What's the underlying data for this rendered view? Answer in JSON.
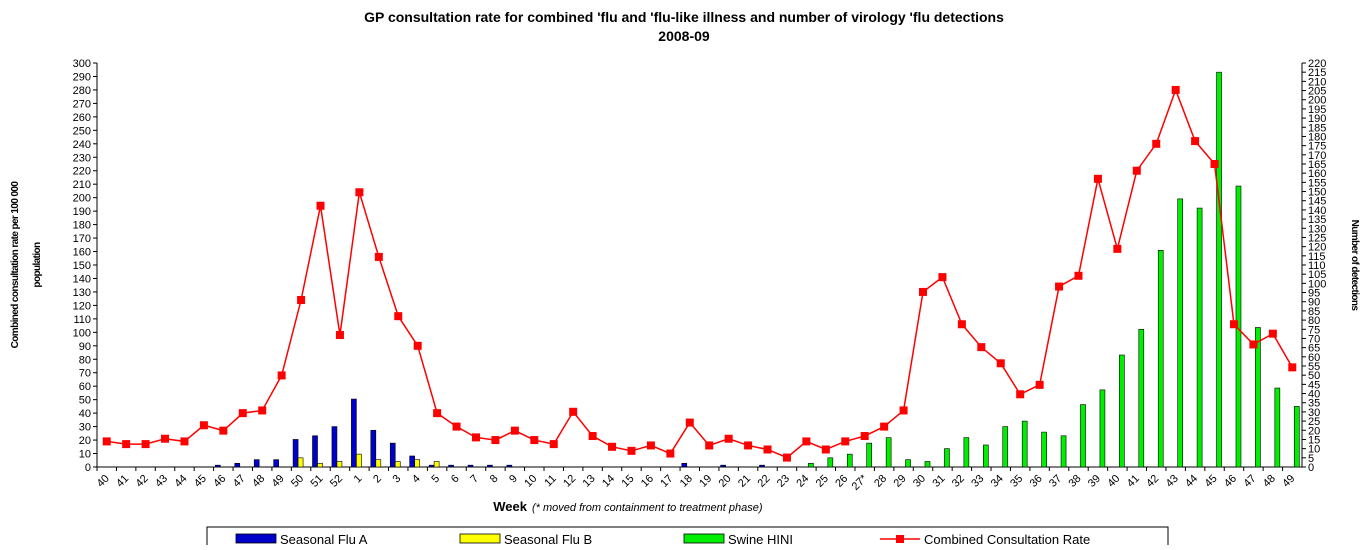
{
  "chart_data": {
    "type": "bar-line",
    "title": "GP consultation rate for combined 'flu and 'flu-like illness and number of virology 'flu detections",
    "subtitle": "2008-09",
    "ylabel_lines": [
      "Combined consultation rate per 100 000",
      "population"
    ],
    "y2label": "Number of detections",
    "xlabel": "Week",
    "xlabel_note": "(* moved from containment to treatment phase)",
    "categories": [
      "40",
      "41",
      "42",
      "43",
      "44",
      "45",
      "46",
      "47",
      "48",
      "49",
      "50",
      "51",
      "52",
      "1",
      "2",
      "3",
      "4",
      "5",
      "6",
      "7",
      "8",
      "9",
      "10",
      "11",
      "12",
      "13",
      "14",
      "15",
      "16",
      "17",
      "18",
      "19",
      "20",
      "21",
      "22",
      "23",
      "24",
      "25",
      "26",
      "27*",
      "28",
      "29",
      "30",
      "31",
      "32",
      "33",
      "34",
      "35",
      "36",
      "37",
      "38",
      "39",
      "40",
      "41",
      "42",
      "43",
      "44",
      "45",
      "46",
      "47",
      "48",
      "49"
    ],
    "ylim": [
      0,
      300
    ],
    "yticks": [
      0,
      10,
      20,
      30,
      40,
      50,
      60,
      70,
      80,
      90,
      100,
      110,
      120,
      130,
      140,
      150,
      160,
      170,
      180,
      190,
      200,
      210,
      220,
      230,
      240,
      250,
      260,
      270,
      280,
      290,
      300
    ],
    "y2lim": [
      0,
      220
    ],
    "y2ticks": [
      0,
      5,
      10,
      15,
      20,
      25,
      30,
      35,
      40,
      45,
      50,
      55,
      60,
      65,
      70,
      75,
      80,
      85,
      90,
      95,
      100,
      105,
      110,
      115,
      120,
      125,
      130,
      135,
      140,
      145,
      150,
      155,
      160,
      165,
      170,
      175,
      180,
      185,
      190,
      195,
      200,
      205,
      210,
      215,
      220
    ],
    "legend": "bottom",
    "series": [
      {
        "name": "Seasonal Flu A",
        "type": "bar",
        "axis": "y2",
        "color": "#0000cc",
        "values": [
          null,
          null,
          null,
          null,
          null,
          null,
          1,
          2,
          4,
          4,
          15,
          17,
          22,
          37,
          20,
          13,
          6,
          1,
          1,
          1,
          1,
          1,
          null,
          null,
          null,
          null,
          null,
          null,
          null,
          null,
          2,
          null,
          1,
          null,
          1,
          null,
          null,
          null,
          null,
          null,
          null,
          null,
          null,
          null,
          null,
          null,
          null,
          null,
          null,
          null,
          null,
          null,
          null,
          null,
          null,
          null,
          null,
          null,
          null,
          null,
          null,
          null
        ]
      },
      {
        "name": "Seasonal Flu B",
        "type": "bar",
        "axis": "y2",
        "color": "#ffff00",
        "values": [
          null,
          null,
          null,
          null,
          null,
          null,
          null,
          null,
          null,
          null,
          5,
          2,
          3,
          7,
          4,
          3,
          4,
          3,
          null,
          null,
          null,
          null,
          null,
          null,
          null,
          null,
          null,
          null,
          null,
          null,
          null,
          null,
          null,
          null,
          null,
          null,
          null,
          null,
          null,
          null,
          null,
          null,
          null,
          null,
          null,
          null,
          null,
          null,
          null,
          null,
          null,
          null,
          null,
          null,
          null,
          null,
          null,
          null,
          null,
          null,
          null,
          null
        ]
      },
      {
        "name": "Swine HINI",
        "type": "bar",
        "axis": "y2",
        "color": "#00ee00",
        "values": [
          null,
          null,
          null,
          null,
          null,
          null,
          null,
          null,
          null,
          null,
          null,
          null,
          null,
          null,
          null,
          null,
          null,
          null,
          null,
          null,
          null,
          null,
          null,
          null,
          null,
          null,
          null,
          null,
          null,
          null,
          null,
          null,
          null,
          null,
          null,
          null,
          2,
          5,
          7,
          13,
          16,
          4,
          3,
          10,
          16,
          12,
          22,
          25,
          19,
          17,
          34,
          42,
          61,
          75,
          118,
          146,
          141,
          215,
          153,
          76,
          43,
          33
        ]
      },
      {
        "name": "Combined Consultation Rate",
        "type": "line",
        "color": "#ff0000",
        "values": [
          19,
          17,
          17,
          21,
          19,
          31,
          27,
          40,
          42,
          68,
          124,
          194,
          98,
          204,
          156,
          112,
          90,
          40,
          30,
          22,
          20,
          27,
          20,
          17,
          41,
          23,
          15,
          12,
          16,
          10,
          33,
          16,
          21,
          16,
          13,
          7,
          19,
          13,
          19,
          23,
          30,
          42,
          130,
          141,
          106,
          89,
          77,
          54,
          61,
          134,
          142,
          214,
          162,
          220,
          240,
          280,
          242,
          225,
          106,
          91,
          99,
          74
        ]
      }
    ]
  }
}
